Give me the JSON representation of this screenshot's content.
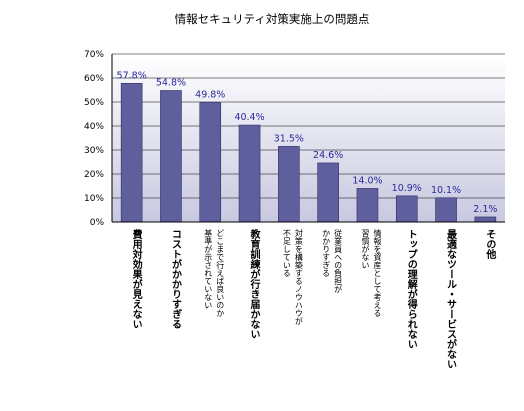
{
  "chart_data": {
    "type": "bar",
    "title": "情報セキュリティ対策実施上の問題点",
    "xlabel": "",
    "ylabel": "",
    "ylim": [
      0,
      70
    ],
    "yticks": [
      "0%",
      "10%",
      "20%",
      "30%",
      "40%",
      "50%",
      "60%",
      "70%"
    ],
    "grid": true,
    "categories": [
      "費用対効果が見えない",
      "コストがかかりすぎる",
      "どこまで行えば良いのか基準が示されていない",
      "教育訓練が行き届かない",
      "対策を構築するノウハウが不足している",
      "従業員への負担がかかりすぎる",
      "情報を資産として考える習慣がない",
      "トップの理解が得られない",
      "最適なツール・サービスがない",
      "その他"
    ],
    "category_lines": [
      [
        "費用対効果が見えない"
      ],
      [
        "コストがかかりすぎる"
      ],
      [
        "どこまで行えば良いのか",
        "基準が示されていない"
      ],
      [
        "教育訓練が行き届かない"
      ],
      [
        "対策を構築するノウハウが",
        "不足している"
      ],
      [
        "従業員への負担が",
        "かかりすぎる"
      ],
      [
        "情報を資産として考える",
        "習慣がない"
      ],
      [
        "トップの理解が得られない"
      ],
      [
        "最適なツール・サービスがない"
      ],
      [
        "その他"
      ]
    ],
    "values": [
      57.8,
      54.8,
      49.8,
      40.4,
      31.5,
      24.6,
      14.0,
      10.9,
      10.1,
      2.1
    ],
    "data_labels": [
      "57.8%",
      "54.8%",
      "49.8%",
      "40.4%",
      "31.5%",
      "24.6%",
      "14.0%",
      "10.9%",
      "10.1%",
      "2.1%"
    ],
    "colors": {
      "bar": "#5f5f9d",
      "bar_stroke": "#2f2f6a",
      "plot_top": "#ffffff",
      "plot_bottom": "#c8c8e0",
      "grid": "#000000",
      "data_label": "#2a2a9a"
    }
  }
}
